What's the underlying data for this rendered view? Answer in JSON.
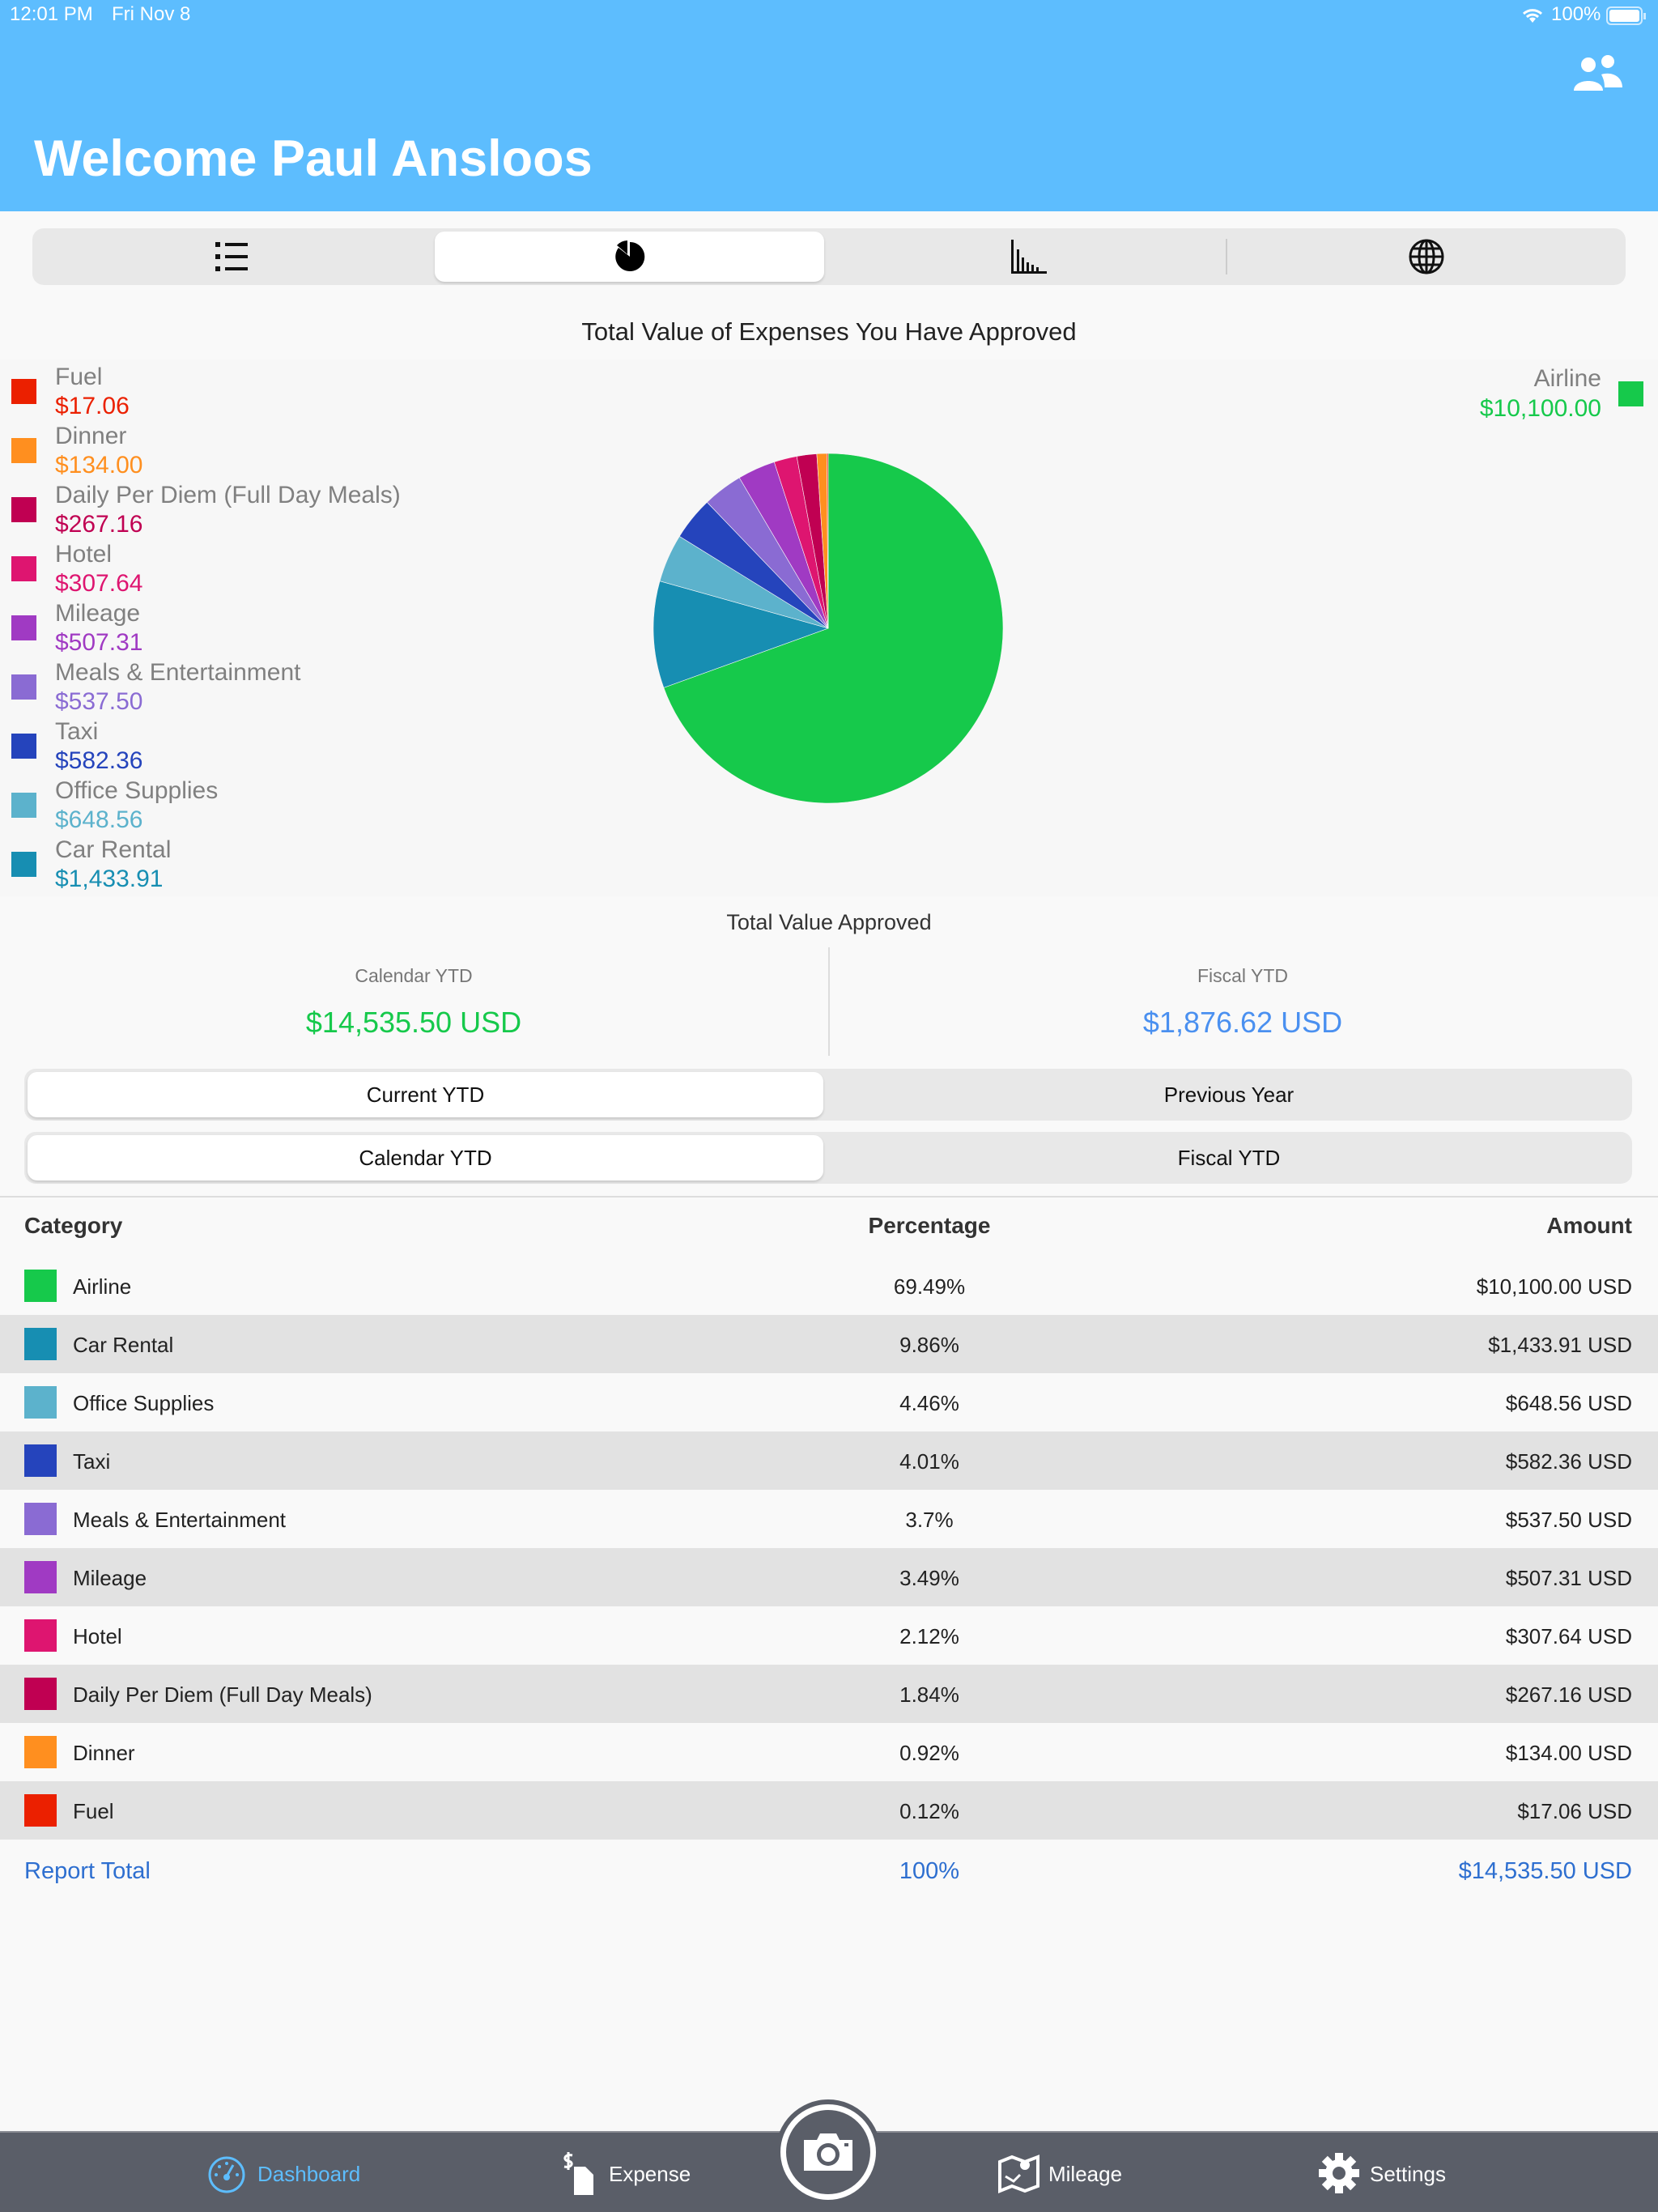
{
  "status_bar": {
    "time": "12:01 PM",
    "date": "Fri Nov 8",
    "battery": "100%"
  },
  "header": {
    "title": "Welcome Paul Ansloos",
    "users_icon": "users-icon"
  },
  "view_tabs": [
    {
      "icon": "list-icon"
    },
    {
      "icon": "pie-chart-icon",
      "selected": true
    },
    {
      "icon": "bar-chart-icon"
    },
    {
      "icon": "globe-icon"
    }
  ],
  "chart_data": {
    "type": "pie",
    "title": "Total Value of Expenses You Have Approved",
    "start": "top",
    "direction": "clockwise",
    "slices": [
      {
        "label": "Airline",
        "value": 10100.0,
        "display": "$10,100.00",
        "color": "#16c94b"
      },
      {
        "label": "Car Rental",
        "value": 1433.91,
        "display": "$1,433.91",
        "color": "#178eb2"
      },
      {
        "label": "Office Supplies",
        "value": 648.56,
        "display": "$648.56",
        "color": "#5cb2cc"
      },
      {
        "label": "Taxi",
        "value": 582.36,
        "display": "$582.36",
        "color": "#2544bc"
      },
      {
        "label": "Meals & Entertainment",
        "value": 537.5,
        "display": "$537.50",
        "color": "#8a6bd3"
      },
      {
        "label": "Mileage",
        "value": 507.31,
        "display": "$507.31",
        "color": "#a03ac3"
      },
      {
        "label": "Hotel",
        "value": 307.64,
        "display": "$307.64",
        "color": "#de1570"
      },
      {
        "label": "Daily Per Diem (Full Day Meals)",
        "value": 267.16,
        "display": "$267.16",
        "color": "#c00052"
      },
      {
        "label": "Dinner",
        "value": 134.0,
        "display": "$134.00",
        "color": "#ff8f1f"
      },
      {
        "label": "Fuel",
        "value": 17.06,
        "display": "$17.06",
        "color": "#eb2000"
      }
    ],
    "legend_left_order": [
      "Fuel",
      "Dinner",
      "Daily Per Diem (Full Day Meals)",
      "Hotel",
      "Mileage",
      "Meals & Entertainment",
      "Taxi",
      "Office Supplies",
      "Car Rental"
    ],
    "legend_right": "Airline"
  },
  "summary": {
    "title": "Total Value Approved",
    "calendar_label": "Calendar YTD",
    "calendar_value": "$14,535.50 USD",
    "calendar_color": "#16c94b",
    "fiscal_label": "Fiscal YTD",
    "fiscal_value": "$1,876.62 USD",
    "fiscal_color": "#4a90f0"
  },
  "period_toggle": {
    "options": [
      "Current YTD",
      "Previous Year"
    ],
    "selected": "Current YTD"
  },
  "year_toggle": {
    "options": [
      "Calendar YTD",
      "Fiscal YTD"
    ],
    "selected": "Calendar YTD"
  },
  "table": {
    "headers": {
      "category": "Category",
      "percentage": "Percentage",
      "amount": "Amount"
    },
    "rows": [
      {
        "category": "Airline",
        "percentage": "69.49%",
        "amount": "$10,100.00 USD",
        "color": "#16c94b"
      },
      {
        "category": "Car Rental",
        "percentage": "9.86%",
        "amount": "$1,433.91 USD",
        "color": "#178eb2"
      },
      {
        "category": "Office Supplies",
        "percentage": "4.46%",
        "amount": "$648.56 USD",
        "color": "#5cb2cc"
      },
      {
        "category": "Taxi",
        "percentage": "4.01%",
        "amount": "$582.36 USD",
        "color": "#2544bc"
      },
      {
        "category": "Meals & Entertainment",
        "percentage": "3.7%",
        "amount": "$537.50 USD",
        "color": "#8a6bd3"
      },
      {
        "category": "Mileage",
        "percentage": "3.49%",
        "amount": "$507.31 USD",
        "color": "#a03ac3"
      },
      {
        "category": "Hotel",
        "percentage": "2.12%",
        "amount": "$307.64 USD",
        "color": "#de1570"
      },
      {
        "category": "Daily Per Diem (Full Day Meals)",
        "percentage": "1.84%",
        "amount": "$267.16 USD",
        "color": "#c00052"
      },
      {
        "category": "Dinner",
        "percentage": "0.92%",
        "amount": "$134.00 USD",
        "color": "#ff8f1f"
      },
      {
        "category": "Fuel",
        "percentage": "0.12%",
        "amount": "$17.06 USD",
        "color": "#eb2000"
      }
    ],
    "total": {
      "label": "Report Total",
      "percentage": "100%",
      "amount": "$14,535.50 USD"
    }
  },
  "tab_bar": {
    "items": [
      {
        "label": "Dashboard",
        "icon": "dashboard-icon",
        "active": true
      },
      {
        "label": "Expense",
        "icon": "expense-icon"
      },
      {
        "label": "Mileage",
        "icon": "map-icon"
      },
      {
        "label": "Settings",
        "icon": "gear-icon"
      }
    ],
    "camera_icon": "camera-icon",
    "active_color": "#5dbdfe"
  }
}
